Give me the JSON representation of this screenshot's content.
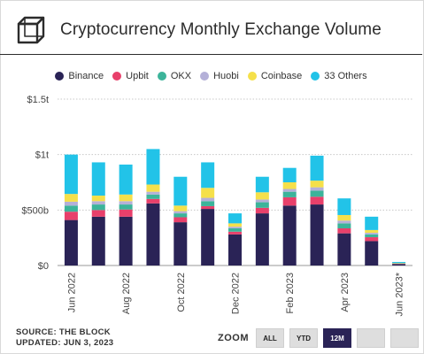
{
  "header": {
    "title": "Cryptocurrency Monthly Exchange Volume"
  },
  "footer": {
    "source": "SOURCE: THE BLOCK",
    "updated": "UPDATED: JUN 3, 2023"
  },
  "zoom": {
    "label": "ZOOM",
    "buttons": [
      "ALL",
      "YTD",
      "12M",
      "",
      ""
    ],
    "active": "12M"
  },
  "colors": {
    "Binance": "#2a2356",
    "Upbit": "#e8406b",
    "OKX": "#3cb49a",
    "Huobi": "#b4b0d8",
    "Coinbase": "#f5e04a",
    "33 Others": "#22c3e8"
  },
  "chart_data": {
    "type": "bar",
    "stacked": true,
    "categories": [
      "Jun 2022",
      "Jul 2022",
      "Aug 2022",
      "Sep 2022",
      "Oct 2022",
      "Nov 2022",
      "Dec 2022",
      "Jan 2023",
      "Feb 2023",
      "Mar 2023",
      "Apr 2023",
      "May 2023",
      "Jun 2023*"
    ],
    "x_tick_labels": [
      "Jun 2022",
      "Aug 2022",
      "Oct 2022",
      "Dec 2022",
      "Feb 2023",
      "Apr 2023",
      "Jun 2023*"
    ],
    "series": [
      {
        "name": "Binance",
        "values": [
          410,
          440,
          440,
          560,
          390,
          510,
          280,
          470,
          540,
          550,
          290,
          220,
          12
        ]
      },
      {
        "name": "Upbit",
        "values": [
          75,
          60,
          65,
          40,
          45,
          25,
          25,
          50,
          75,
          70,
          45,
          35,
          3
        ]
      },
      {
        "name": "OKX",
        "values": [
          55,
          50,
          45,
          40,
          35,
          45,
          30,
          50,
          50,
          55,
          45,
          25,
          4
        ]
      },
      {
        "name": "Huobi",
        "values": [
          35,
          30,
          30,
          25,
          20,
          30,
          15,
          25,
          25,
          30,
          25,
          15,
          2
        ]
      },
      {
        "name": "Coinbase",
        "values": [
          70,
          50,
          60,
          65,
          50,
          90,
          30,
          65,
          60,
          60,
          50,
          25,
          3
        ]
      },
      {
        "name": "33 Others",
        "values": [
          355,
          300,
          270,
          320,
          260,
          230,
          90,
          140,
          130,
          225,
          150,
          120,
          8
        ]
      }
    ],
    "y_ticks": [
      {
        "value": 0,
        "label": "$0"
      },
      {
        "value": 500,
        "label": "$500b"
      },
      {
        "value": 1000,
        "label": "$1t"
      },
      {
        "value": 1500,
        "label": "$1.5t"
      }
    ],
    "ylim": [
      0,
      1500
    ],
    "grid": true,
    "legend_position": "top-center"
  }
}
